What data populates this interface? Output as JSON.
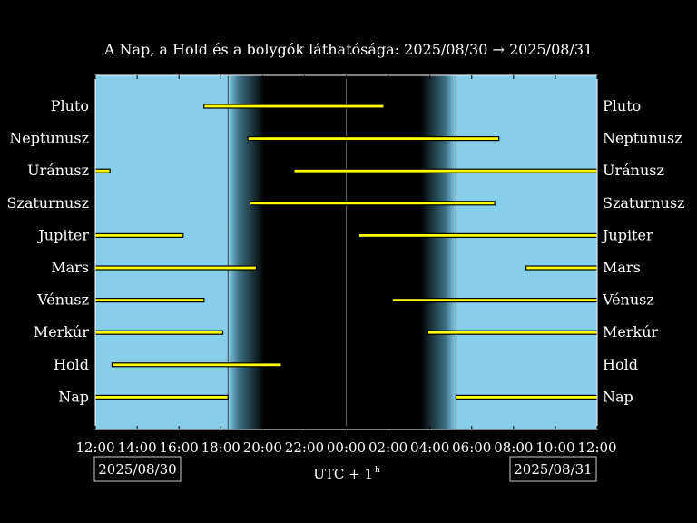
{
  "chart_data": {
    "type": "bar",
    "title": "A Nap, a Hold és a bolygók láthatósága: 2025/08/30 → 2025/08/31",
    "xlabel_main": "UTC + 1",
    "xlabel_sup": "h",
    "x_unit": "hours since 2025/08/30 12:00 (UTC+1)",
    "xlim": [
      0,
      24
    ],
    "x_ticks": [
      {
        "x": 0,
        "label": "12:00"
      },
      {
        "x": 2,
        "label": "14:00"
      },
      {
        "x": 4,
        "label": "16:00"
      },
      {
        "x": 6,
        "label": "18:00"
      },
      {
        "x": 8,
        "label": "20:00"
      },
      {
        "x": 10,
        "label": "22:00"
      },
      {
        "x": 12,
        "label": "00:00"
      },
      {
        "x": 14,
        "label": "02:00"
      },
      {
        "x": 16,
        "label": "04:00"
      },
      {
        "x": 18,
        "label": "06:00"
      },
      {
        "x": 20,
        "label": "08:00"
      },
      {
        "x": 22,
        "label": "10:00"
      },
      {
        "x": 24,
        "label": "12:00"
      }
    ],
    "date_left": "2025/08/30",
    "date_right": "2025/08/31",
    "sunset": 6.35,
    "sunrise": 17.25,
    "twilight_dusk_end": 8.1,
    "twilight_dawn_start": 15.55,
    "midnight": 12,
    "colors": {
      "day": "#87ceeb",
      "night": "#000000",
      "bar": "#ffff00",
      "bar_edge": "#000000",
      "line": "#555555"
    },
    "bodies": [
      {
        "name": "Pluto",
        "intervals": [
          [
            5.2,
            13.8
          ]
        ]
      },
      {
        "name": "Neptunusz",
        "intervals": [
          [
            7.3,
            19.3
          ]
        ]
      },
      {
        "name": "Uránusz",
        "intervals": [
          [
            0,
            0.7
          ],
          [
            9.5,
            24
          ]
        ]
      },
      {
        "name": "Szaturnusz",
        "intervals": [
          [
            7.4,
            19.1
          ]
        ]
      },
      {
        "name": "Jupiter",
        "intervals": [
          [
            0,
            4.2
          ],
          [
            12.6,
            24
          ]
        ]
      },
      {
        "name": "Mars",
        "intervals": [
          [
            0,
            7.7
          ],
          [
            20.6,
            24
          ]
        ]
      },
      {
        "name": "Vénusz",
        "intervals": [
          [
            0,
            5.2
          ],
          [
            14.2,
            24
          ]
        ]
      },
      {
        "name": "Merkúr",
        "intervals": [
          [
            0,
            6.1
          ],
          [
            15.9,
            24
          ]
        ]
      },
      {
        "name": "Hold",
        "intervals": [
          [
            0.8,
            8.9
          ]
        ]
      },
      {
        "name": "Nap",
        "intervals": [
          [
            0,
            6.35
          ],
          [
            17.25,
            24
          ]
        ]
      }
    ]
  }
}
